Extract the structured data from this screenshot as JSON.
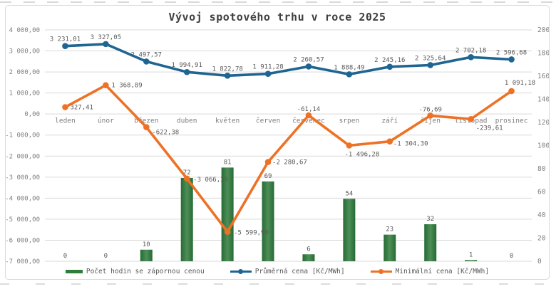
{
  "chart_data": {
    "type": "combo-bar-line",
    "title": "Vývoj spotového trhu v roce 2025",
    "categories": [
      "leden",
      "únor",
      "březen",
      "duben",
      "květen",
      "červen",
      "červenec",
      "srpen",
      "září",
      "říjen",
      "listopad",
      "prosinec"
    ],
    "series": [
      {
        "name": "Počet hodin se zápornou cenou",
        "type": "bar",
        "axis": "right",
        "color": "#2e7d3b",
        "color_edge": "#256b35",
        "color_center": "#4f8e57",
        "values": [
          0,
          0,
          10,
          72,
          81,
          69,
          6,
          54,
          23,
          32,
          1,
          0
        ],
        "labels": [
          "0",
          "0",
          "10",
          "72",
          "81",
          "69",
          "6",
          "54",
          "23",
          "32",
          "1",
          "0"
        ]
      },
      {
        "name": "Průměrná cena [Kč/MWh]",
        "type": "line",
        "axis": "left",
        "color": "#1f6591",
        "values": [
          3231.01,
          3327.05,
          2497.57,
          1994.91,
          1822.78,
          1911.28,
          2260.57,
          1888.49,
          2245.16,
          2325.64,
          2702.18,
          2596.68
        ],
        "labels": [
          "3 231,01",
          "3 327,05",
          "2 497,57",
          "1 994,91",
          "1 822,78",
          "1 911,28",
          "2 260,57",
          "1 888,49",
          "2 245,16",
          "2 325,64",
          "2 702,18",
          "2 596,68"
        ]
      },
      {
        "name": "Minimální cena [Kč/MWh]",
        "type": "line",
        "axis": "left",
        "color": "#ed7225",
        "values": [
          327.41,
          1368.89,
          -622.38,
          -3066.39,
          -5599.9,
          -2280.67,
          -61.14,
          -1496.28,
          -1304.3,
          -76.69,
          -239.61,
          1091.18
        ],
        "labels": [
          "327,41",
          "1 368,89",
          "-622,38",
          "-3 066,39",
          "-5 599,90",
          "-2 280,67",
          "-61,14",
          "-1 496,28",
          "-1 304,30",
          "-76,69",
          "-239,61",
          "1 091,18"
        ]
      }
    ],
    "left_axis": {
      "min": -7000,
      "max": 4000,
      "step": 1000,
      "labels": [
        "4 000,00",
        "3 000,00",
        "2 000,00",
        "1 000,00",
        "0,00",
        "-1 000,00",
        "-2 000,00",
        "-3 000,00",
        "-4 000,00",
        "-5 000,00",
        "-6 000,00",
        "-7 000,00"
      ]
    },
    "right_axis": {
      "min": 0,
      "max": 200,
      "step": 20,
      "labels": [
        "200",
        "180",
        "160",
        "140",
        "120",
        "100",
        "80",
        "60",
        "40",
        "20",
        "0"
      ]
    },
    "grid": true,
    "legend_position": "bottom"
  }
}
